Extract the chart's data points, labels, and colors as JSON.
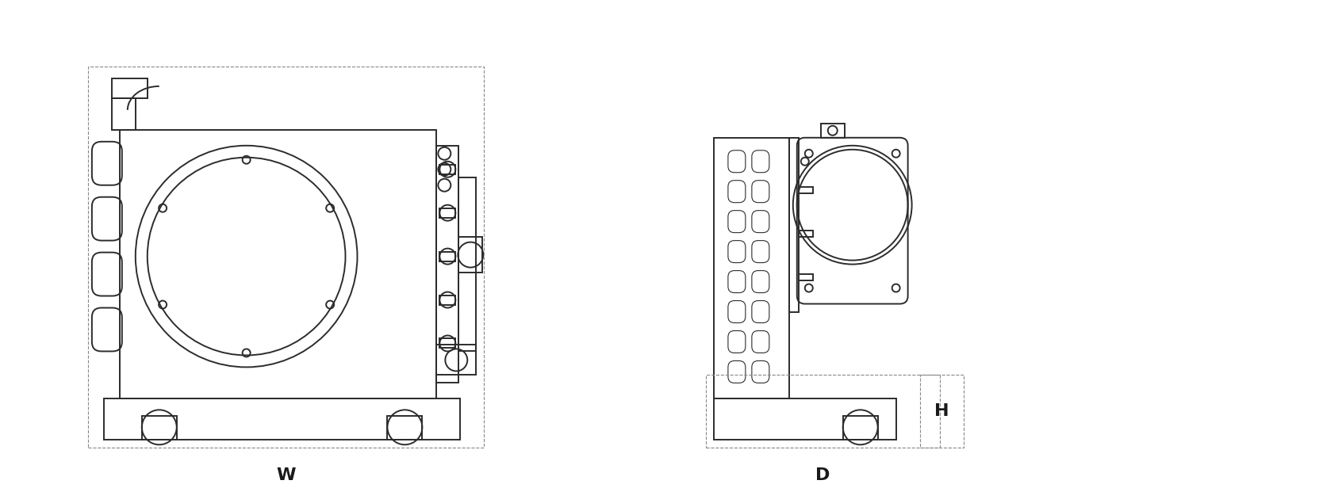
{
  "bg_color": "#ffffff",
  "line_color": "#2c2c2c",
  "dim_color": "#1a1a1a",
  "dashed_color": "#888888",
  "label_W": "W",
  "label_D": "D",
  "label_H": "H",
  "label_fontsize": 16,
  "label_fontweight": "bold",
  "fig_width": 16.68,
  "fig_height": 6.16
}
